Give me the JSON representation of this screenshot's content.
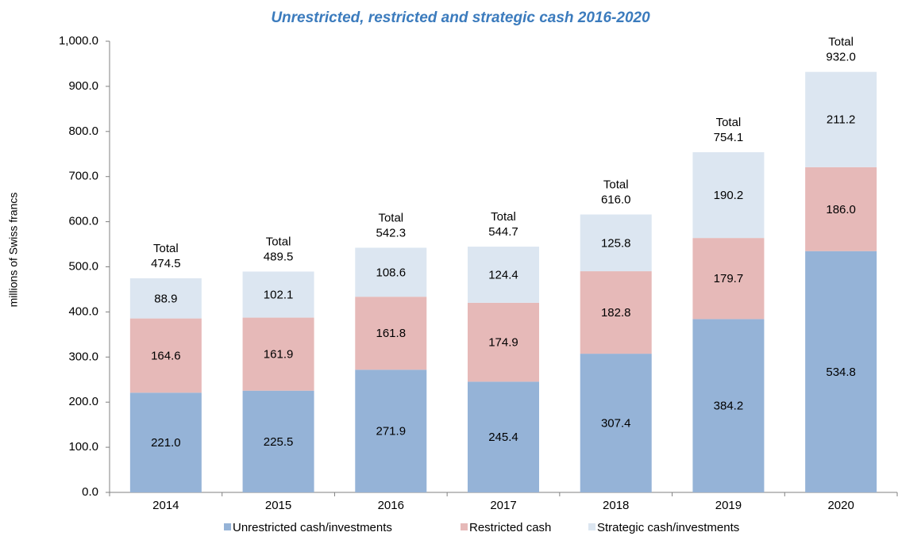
{
  "chart_data": {
    "type": "stacked_bar",
    "title": "Unrestricted, restricted and strategic cash 2016-2020",
    "y_label": "millions of Swiss francs",
    "categories": [
      "2014",
      "2015",
      "2016",
      "2017",
      "2018",
      "2019",
      "2020"
    ],
    "series": [
      {
        "name": "Unrestricted cash/investments",
        "color": "#95b3d7",
        "values": [
          221.0,
          225.5,
          271.9,
          245.4,
          307.4,
          384.2,
          534.8
        ],
        "value_labels": [
          "221.0",
          "225.5",
          "271.9",
          "245.4",
          "307.4",
          "384.2",
          "534.8"
        ]
      },
      {
        "name": "Restricted cash",
        "color": "#e6b9b8",
        "values": [
          164.6,
          161.9,
          161.8,
          174.9,
          182.8,
          179.7,
          186.0
        ],
        "value_labels": [
          "164.6",
          "161.9",
          "161.8",
          "174.9",
          "182.8",
          "179.7",
          "186.0"
        ]
      },
      {
        "name": "Strategic cash/investments",
        "color": "#dce6f1",
        "values": [
          88.9,
          102.1,
          108.6,
          124.4,
          125.8,
          190.2,
          211.2
        ],
        "value_labels": [
          "88.9",
          "102.1",
          "108.6",
          "124.4",
          "125.8",
          "190.2",
          "211.2"
        ]
      }
    ],
    "totals": {
      "label": "Total",
      "values": [
        474.5,
        489.5,
        542.3,
        544.7,
        616.0,
        754.1,
        932.0
      ],
      "value_labels": [
        "474.5",
        "489.5",
        "542.3",
        "544.7",
        "616.0",
        "754.1",
        "932.0"
      ]
    },
    "ylim": [
      0,
      1000
    ],
    "yticks": [
      {
        "value": 0,
        "label": "0.0"
      },
      {
        "value": 100,
        "label": "100.0"
      },
      {
        "value": 200,
        "label": "200.0"
      },
      {
        "value": 300,
        "label": "300.0"
      },
      {
        "value": 400,
        "label": "400.0"
      },
      {
        "value": 500,
        "label": "500.0"
      },
      {
        "value": 600,
        "label": "600.0"
      },
      {
        "value": 700,
        "label": "700.0"
      },
      {
        "value": 800,
        "label": "800.0"
      },
      {
        "value": 900,
        "label": "900.0"
      },
      {
        "value": 1000,
        "label": "1,000.0"
      }
    ],
    "grid": false,
    "legend": "bottom"
  }
}
